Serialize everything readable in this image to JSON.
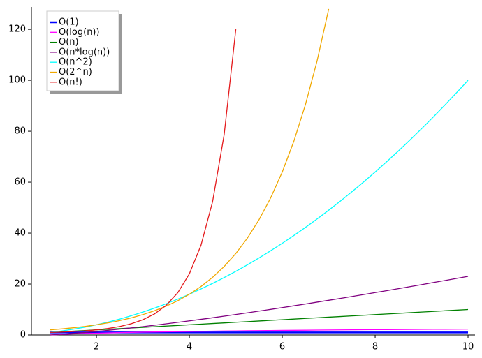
{
  "chart_data": {
    "type": "line",
    "x": [
      1,
      1.25,
      1.5,
      1.75,
      2,
      2.25,
      2.5,
      2.75,
      3,
      3.25,
      3.5,
      3.75,
      4,
      4.25,
      4.5,
      4.75,
      5,
      5.25,
      5.5,
      5.75,
      6,
      6.25,
      6.5,
      6.75,
      7,
      7.25,
      7.5,
      7.75,
      8,
      8.25,
      8.5,
      8.75,
      9,
      9.25,
      9.5,
      9.75,
      10
    ],
    "series": [
      {
        "name": "O(1)",
        "color": "#0000ff",
        "values": [
          1,
          1,
          1,
          1,
          1,
          1,
          1,
          1,
          1,
          1,
          1,
          1,
          1,
          1,
          1,
          1,
          1,
          1,
          1,
          1,
          1,
          1,
          1,
          1,
          1,
          1,
          1,
          1,
          1,
          1,
          1,
          1,
          1,
          1,
          1,
          1,
          1
        ]
      },
      {
        "name": "O(log(n))",
        "color": "#ff00ff",
        "values": [
          0,
          0.223,
          0.405,
          0.56,
          0.693,
          0.811,
          0.916,
          1.012,
          1.099,
          1.179,
          1.253,
          1.322,
          1.386,
          1.447,
          1.504,
          1.558,
          1.609,
          1.658,
          1.705,
          1.749,
          1.792,
          1.833,
          1.872,
          1.91,
          1.946,
          1.981,
          2.015,
          2.048,
          2.079,
          2.11,
          2.14,
          2.169,
          2.197,
          2.225,
          2.251,
          2.277,
          2.303
        ]
      },
      {
        "name": "O(n)",
        "color": "#008000",
        "values": [
          1,
          1.25,
          1.5,
          1.75,
          2,
          2.25,
          2.5,
          2.75,
          3,
          3.25,
          3.5,
          3.75,
          4,
          4.25,
          4.5,
          4.75,
          5,
          5.25,
          5.5,
          5.75,
          6,
          6.25,
          6.5,
          6.75,
          7,
          7.25,
          7.5,
          7.75,
          8,
          8.25,
          8.5,
          8.75,
          9,
          9.25,
          9.5,
          9.75,
          10
        ]
      },
      {
        "name": "O(n*log(n))",
        "color": "#800080",
        "values": [
          0,
          0.279,
          0.608,
          0.979,
          1.386,
          1.825,
          2.291,
          2.783,
          3.296,
          3.832,
          4.385,
          4.957,
          5.545,
          6.15,
          6.768,
          7.401,
          8.047,
          8.705,
          9.376,
          10.057,
          10.751,
          11.456,
          12.168,
          12.893,
          13.621,
          14.362,
          15.113,
          15.872,
          16.636,
          17.408,
          18.19,
          18.979,
          19.775,
          20.581,
          21.385,
          22.201,
          23.026
        ]
      },
      {
        "name": "O(n^2)",
        "color": "#00ffff",
        "values": [
          1,
          1.5625,
          2.25,
          3.0625,
          4,
          5.0625,
          6.25,
          7.5625,
          9,
          10.5625,
          12.25,
          14.0625,
          16,
          18.0625,
          20.25,
          22.5625,
          25,
          27.5625,
          30.25,
          33.0625,
          36,
          39.0625,
          42.25,
          45.5625,
          49,
          52.5625,
          56.25,
          60.0625,
          64,
          68.0625,
          72.25,
          76.5625,
          81,
          85.5625,
          90.25,
          95.0625,
          100
        ]
      },
      {
        "name": "O(2^n)",
        "color": "#f0a800",
        "values": [
          2,
          2.378,
          2.828,
          3.364,
          4,
          4.757,
          5.657,
          6.727,
          8,
          9.514,
          11.314,
          13.454,
          16,
          19.027,
          22.627,
          26.909,
          32,
          38.055,
          45.255,
          53.817,
          64,
          76.109,
          90.51,
          107.635,
          128,
          null,
          null,
          null,
          null,
          null,
          null,
          null,
          null,
          null,
          null,
          null,
          null
        ]
      },
      {
        "name": "O(n!)",
        "color": "#e41a1c",
        "values": [
          1,
          1.133,
          1.329,
          1.608,
          2,
          2.549,
          3.323,
          4.423,
          6,
          8.285,
          11.632,
          16.586,
          24,
          35.211,
          52.343,
          78.785,
          120,
          null,
          null,
          null,
          null,
          null,
          null,
          null,
          null,
          null,
          null,
          null,
          null,
          null,
          null,
          null,
          null,
          null,
          null,
          null,
          null
        ]
      }
    ],
    "xlim": [
      0.6,
      10.15
    ],
    "xticks": [
      2,
      4,
      6,
      8,
      10
    ],
    "ylim": [
      0,
      128.8
    ],
    "yticks": [
      0,
      20,
      40,
      60,
      80,
      100,
      120
    ],
    "legend": "upper-left"
  }
}
